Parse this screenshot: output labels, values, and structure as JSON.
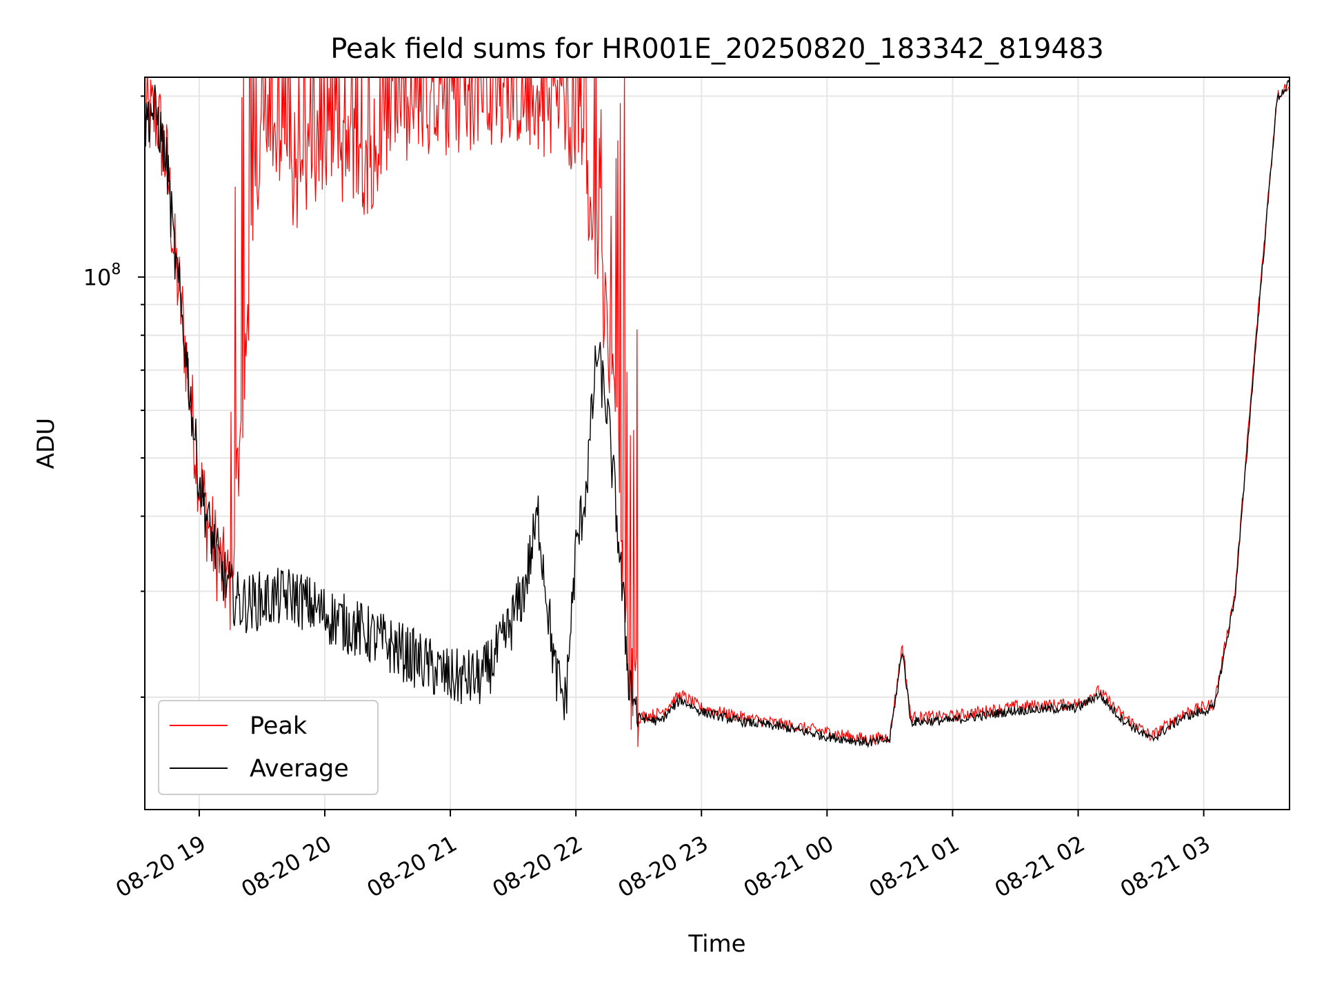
{
  "chart_data": {
    "type": "line",
    "title": "Peak field sums for HR001E_20250820_183342_819483",
    "xlabel": "Time",
    "ylabel": "ADU",
    "y_scale": "log",
    "grid": true,
    "legend_position": "lower-left",
    "x_tick_labels": [
      "08-20 19",
      "08-20 20",
      "08-20 21",
      "08-20 22",
      "08-20 23",
      "08-21 00",
      "08-21 01",
      "08-21 02",
      "08-21 03"
    ],
    "y_tick_label": "10^8",
    "xlim": [
      "2025-08-20 18:34",
      "2025-08-21 03:41"
    ],
    "ylim": [
      13000000,
      215000000
    ],
    "series": [
      {
        "name": "Peak",
        "color": "#ff0000",
        "points": [
          [
            "2025-08-20 18:34",
            185000000
          ],
          [
            "2025-08-20 18:40",
            185000000
          ],
          [
            "2025-08-20 18:45",
            150000000
          ],
          [
            "2025-08-20 18:48",
            110000000
          ],
          [
            "2025-08-20 18:52",
            85000000
          ],
          [
            "2025-08-20 18:56",
            62000000
          ],
          [
            "2025-08-20 19:00",
            46000000
          ],
          [
            "2025-08-20 19:05",
            38000000
          ],
          [
            "2025-08-20 19:10",
            33000000
          ],
          [
            "2025-08-20 19:15",
            30000000
          ],
          [
            "2025-08-20 19:30",
            180000000
          ],
          [
            "2025-08-20 19:45",
            140000000
          ],
          [
            "2025-08-20 20:00",
            165000000
          ],
          [
            "2025-08-20 20:20",
            150000000
          ],
          [
            "2025-08-20 20:30",
            175000000
          ],
          [
            "2025-08-20 21:00",
            190000000
          ],
          [
            "2025-08-20 21:30",
            200000000
          ],
          [
            "2025-08-20 22:00",
            180000000
          ],
          [
            "2025-08-20 22:10",
            110000000
          ],
          [
            "2025-08-20 22:20",
            60000000
          ],
          [
            "2025-08-20 22:25",
            22000000
          ],
          [
            "2025-08-20 22:30",
            18500000
          ],
          [
            "2025-08-20 22:40",
            18800000
          ],
          [
            "2025-08-20 22:50",
            20200000
          ],
          [
            "2025-08-20 23:00",
            19200000
          ],
          [
            "2025-08-20 23:20",
            18500000
          ],
          [
            "2025-08-20 23:40",
            18000000
          ],
          [
            "2025-08-21 00:00",
            17500000
          ],
          [
            "2025-08-21 00:20",
            17000000
          ],
          [
            "2025-08-21 00:30",
            17200000
          ],
          [
            "2025-08-21 00:36",
            24500000
          ],
          [
            "2025-08-21 00:40",
            18500000
          ],
          [
            "2025-08-21 01:00",
            18600000
          ],
          [
            "2025-08-21 01:30",
            19300000
          ],
          [
            "2025-08-21 02:00",
            19500000
          ],
          [
            "2025-08-21 02:10",
            20500000
          ],
          [
            "2025-08-21 02:20",
            18800000
          ],
          [
            "2025-08-21 02:35",
            17200000
          ],
          [
            "2025-08-21 02:50",
            18800000
          ],
          [
            "2025-08-21 03:05",
            19500000
          ],
          [
            "2025-08-21 03:15",
            30000000
          ],
          [
            "2025-08-21 03:25",
            80000000
          ],
          [
            "2025-08-21 03:35",
            200000000
          ],
          [
            "2025-08-21 03:41",
            210000000
          ]
        ]
      },
      {
        "name": "Average",
        "color": "#000000",
        "points": [
          [
            "2025-08-20 18:34",
            180000000
          ],
          [
            "2025-08-20 18:37",
            190000000
          ],
          [
            "2025-08-20 18:40",
            185000000
          ],
          [
            "2025-08-20 18:45",
            150000000
          ],
          [
            "2025-08-20 18:48",
            110000000
          ],
          [
            "2025-08-20 18:52",
            85000000
          ],
          [
            "2025-08-20 18:56",
            62000000
          ],
          [
            "2025-08-20 19:00",
            46000000
          ],
          [
            "2025-08-20 19:05",
            38000000
          ],
          [
            "2025-08-20 19:10",
            33000000
          ],
          [
            "2025-08-20 19:15",
            30000000
          ],
          [
            "2025-08-20 19:20",
            28500000
          ],
          [
            "2025-08-20 19:30",
            29000000
          ],
          [
            "2025-08-20 19:45",
            29500000
          ],
          [
            "2025-08-20 20:00",
            27500000
          ],
          [
            "2025-08-20 20:15",
            26000000
          ],
          [
            "2025-08-20 20:30",
            24500000
          ],
          [
            "2025-08-20 20:45",
            23000000
          ],
          [
            "2025-08-20 21:00",
            21500000
          ],
          [
            "2025-08-20 21:15",
            21500000
          ],
          [
            "2025-08-20 21:25",
            24500000
          ],
          [
            "2025-08-20 21:35",
            30000000
          ],
          [
            "2025-08-20 21:42",
            40000000
          ],
          [
            "2025-08-20 21:50",
            22000000
          ],
          [
            "2025-08-20 21:55",
            19500000
          ],
          [
            "2025-08-20 22:00",
            35000000
          ],
          [
            "2025-08-20 22:05",
            45000000
          ],
          [
            "2025-08-20 22:10",
            75000000
          ],
          [
            "2025-08-20 22:15",
            60000000
          ],
          [
            "2025-08-20 22:20",
            38000000
          ],
          [
            "2025-08-20 22:25",
            22000000
          ],
          [
            "2025-08-20 22:30",
            18500000
          ],
          [
            "2025-08-20 22:40",
            18200000
          ],
          [
            "2025-08-20 22:50",
            19800000
          ],
          [
            "2025-08-20 23:00",
            18900000
          ],
          [
            "2025-08-20 23:20",
            18200000
          ],
          [
            "2025-08-20 23:40",
            17800000
          ],
          [
            "2025-08-21 00:00",
            17200000
          ],
          [
            "2025-08-21 00:20",
            16800000
          ],
          [
            "2025-08-21 00:30",
            17000000
          ],
          [
            "2025-08-21 00:36",
            24000000
          ],
          [
            "2025-08-21 00:40",
            18200000
          ],
          [
            "2025-08-21 01:00",
            18300000
          ],
          [
            "2025-08-21 01:30",
            19000000
          ],
          [
            "2025-08-21 02:00",
            19200000
          ],
          [
            "2025-08-21 02:10",
            20200000
          ],
          [
            "2025-08-21 02:20",
            18500000
          ],
          [
            "2025-08-21 02:35",
            17000000
          ],
          [
            "2025-08-21 02:50",
            18500000
          ],
          [
            "2025-08-21 03:05",
            19200000
          ],
          [
            "2025-08-21 03:15",
            29500000
          ],
          [
            "2025-08-21 03:25",
            78000000
          ],
          [
            "2025-08-21 03:35",
            198000000
          ],
          [
            "2025-08-21 03:41",
            210000000
          ]
        ]
      }
    ]
  }
}
